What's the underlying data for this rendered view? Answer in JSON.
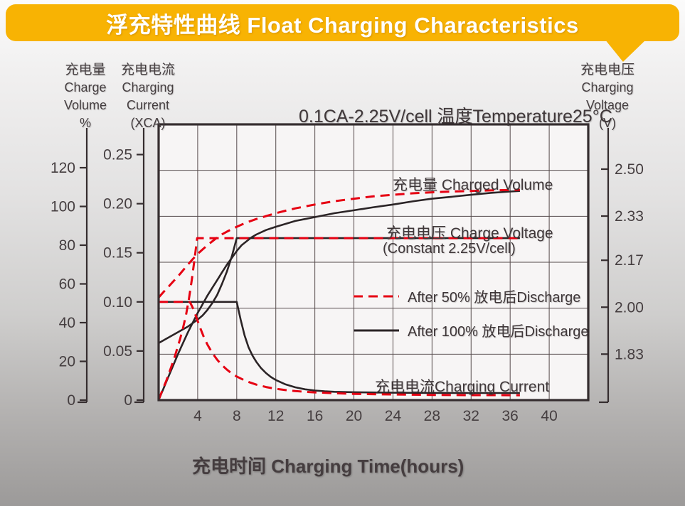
{
  "banner": {
    "title": "浮充特性曲线 Float Charging Characteristics",
    "color": "#F8B303"
  },
  "axes": {
    "volume": {
      "lines": [
        "充电量",
        "Charge",
        "Volume",
        "%"
      ]
    },
    "current": {
      "lines": [
        "充电电流",
        "Charging",
        "Current",
        "(XCA)"
      ]
    },
    "voltage": {
      "lines": [
        "充电电压",
        "Charging",
        "Voltage",
        "(V)"
      ]
    }
  },
  "annotations": {
    "charged_volume": "充电量 Charged Volume",
    "charge_voltage_line1": "充电电压 Charge Voltage",
    "charge_voltage_line2": "(Constant 2.25V/cell)",
    "charging_current": "充电电流Charging Current"
  },
  "legend": {
    "items": [
      {
        "label": "After 50% 放电后Discharge",
        "color": "#E60012",
        "dash": "13 8"
      },
      {
        "label": "After 100% 放电后Discharge",
        "color": "#2B2426",
        "dash": ""
      }
    ]
  },
  "x_axis_title": "充电时间 Charging Time(hours)",
  "chart_data": {
    "type": "line",
    "title": "浮充特性曲线 Float Charging Characteristics",
    "condition_note": "0.1CA-2.25V/cell  温度Temperature25°C",
    "grid": {
      "vertical_divisions": 11,
      "horizontal_divisions": 6,
      "grid_on": true
    },
    "x_axis": {
      "label": "充电时间 Charging Time(hours)",
      "range": [
        0,
        44
      ],
      "ticks": [
        "4",
        "8",
        "12",
        "16",
        "20",
        "24",
        "28",
        "32",
        "36",
        "40"
      ]
    },
    "y_axes": {
      "charge_volume": {
        "label": "充电量 Charge Volume %",
        "range": [
          0,
          120
        ],
        "ticks": [
          "0",
          "20",
          "40",
          "60",
          "80",
          "100",
          "120"
        ]
      },
      "charging_current": {
        "label": "充电电流 Charging Current (XCA)",
        "range": [
          0,
          0.25
        ],
        "ticks": [
          "0",
          "0.05",
          "0.10",
          "0.15",
          "0.20",
          "0.25"
        ]
      },
      "charging_voltage": {
        "label": "充电电压 Charging Voltage (V)",
        "range": [
          1.66,
          2.67
        ],
        "ticks": [
          "1.83",
          "2.00",
          "2.17",
          "2.33",
          "2.50"
        ]
      }
    },
    "legend_position": "middle-right",
    "series": [
      {
        "name": "Charged Volume — After 100% 放电后Discharge",
        "axis": "charge_volume",
        "color": "#2B2426",
        "dash": "",
        "width": 2.6,
        "points": [
          [
            0,
            0
          ],
          [
            0.5,
            6
          ],
          [
            1,
            12
          ],
          [
            1.5,
            18
          ],
          [
            2,
            24
          ],
          [
            2.5,
            29.5
          ],
          [
            3,
            35
          ],
          [
            3.5,
            40
          ],
          [
            4,
            45
          ],
          [
            4.5,
            49.5
          ],
          [
            5,
            54
          ],
          [
            5.5,
            58
          ],
          [
            6,
            62
          ],
          [
            6.5,
            66
          ],
          [
            7,
            70
          ],
          [
            7.5,
            73.5
          ],
          [
            8,
            77
          ],
          [
            8.5,
            80
          ],
          [
            9,
            82
          ],
          [
            9.5,
            84
          ],
          [
            10,
            85.5
          ],
          [
            11,
            87.8
          ],
          [
            12,
            89.5
          ],
          [
            13,
            91
          ],
          [
            14,
            92.5
          ],
          [
            15,
            93.5
          ],
          [
            16,
            94.5
          ],
          [
            18,
            96.5
          ],
          [
            20,
            98
          ],
          [
            22,
            99.6
          ],
          [
            24,
            101
          ],
          [
            26,
            102.6
          ],
          [
            28,
            104
          ],
          [
            30,
            105
          ],
          [
            32,
            106
          ],
          [
            34,
            107
          ],
          [
            36,
            107.7
          ],
          [
            37,
            108
          ]
        ]
      },
      {
        "name": "Charged Volume — After 50% 放电后Discharge",
        "axis": "charge_volume",
        "color": "#E60012",
        "dash": "13 8",
        "width": 3,
        "points": [
          [
            0,
            53
          ],
          [
            0.5,
            55.8
          ],
          [
            1,
            58.5
          ],
          [
            1.5,
            61.3
          ],
          [
            2,
            64
          ],
          [
            2.5,
            67
          ],
          [
            3,
            70
          ],
          [
            3.5,
            72.8
          ],
          [
            4,
            75.5
          ],
          [
            4.5,
            77.8
          ],
          [
            5,
            80
          ],
          [
            5.5,
            82
          ],
          [
            6,
            84
          ],
          [
            6.5,
            85.6
          ],
          [
            7,
            87
          ],
          [
            7.5,
            88.3
          ],
          [
            8,
            89.5
          ],
          [
            9,
            91.7
          ],
          [
            10,
            93.5
          ],
          [
            11,
            95
          ],
          [
            12,
            96.5
          ],
          [
            13,
            97.8
          ],
          [
            14,
            99
          ],
          [
            15,
            100
          ],
          [
            16,
            101
          ],
          [
            18,
            102.7
          ],
          [
            20,
            104
          ],
          [
            22,
            105.2
          ],
          [
            24,
            106
          ],
          [
            26,
            106.8
          ],
          [
            28,
            107.3
          ],
          [
            30,
            107.7
          ],
          [
            32,
            108
          ],
          [
            34,
            108.3
          ],
          [
            36,
            108.5
          ],
          [
            37,
            108.6
          ]
        ]
      },
      {
        "name": "Charge Voltage — After 100% 放电后Discharge (constant 2.25V/cell)",
        "axis": "charging_voltage",
        "color": "#2B2426",
        "dash": "",
        "width": 2.6,
        "points": [
          [
            0,
            1.87
          ],
          [
            1,
            1.89
          ],
          [
            2,
            1.91
          ],
          [
            3,
            1.93
          ],
          [
            4,
            1.955
          ],
          [
            4.5,
            1.97
          ],
          [
            5,
            1.99
          ],
          [
            5.5,
            2.015
          ],
          [
            6,
            2.045
          ],
          [
            6.5,
            2.085
          ],
          [
            7,
            2.13
          ],
          [
            7.5,
            2.185
          ],
          [
            8,
            2.25
          ],
          [
            37,
            2.25
          ]
        ]
      },
      {
        "name": "Charge Voltage — After 50% 放电后Discharge (constant 2.25V/cell)",
        "axis": "charging_voltage",
        "color": "#E60012",
        "dash": "13 8",
        "width": 3,
        "points": [
          [
            0,
            1.665
          ],
          [
            0.4,
            1.7
          ],
          [
            0.8,
            1.735
          ],
          [
            1.2,
            1.775
          ],
          [
            1.6,
            1.815
          ],
          [
            1.9,
            1.85
          ],
          [
            2.2,
            1.885
          ],
          [
            2.5,
            1.925
          ],
          [
            2.8,
            1.97
          ],
          [
            3.1,
            2.03
          ],
          [
            3.4,
            2.1
          ],
          [
            3.7,
            2.18
          ],
          [
            3.95,
            2.25
          ],
          [
            37,
            2.25
          ]
        ]
      },
      {
        "name": "Charging Current — After 100% 放电后Discharge",
        "axis": "charging_current",
        "color": "#2B2426",
        "dash": "",
        "width": 2.6,
        "points": [
          [
            0,
            0.1
          ],
          [
            8,
            0.1
          ],
          [
            8.4,
            0.082
          ],
          [
            8.8,
            0.066
          ],
          [
            9.2,
            0.054
          ],
          [
            9.6,
            0.0455
          ],
          [
            10,
            0.039
          ],
          [
            10.5,
            0.0325
          ],
          [
            11,
            0.0275
          ],
          [
            11.5,
            0.0235
          ],
          [
            12,
            0.0205
          ],
          [
            13,
            0.016
          ],
          [
            14,
            0.013
          ],
          [
            15,
            0.011
          ],
          [
            16,
            0.0098
          ],
          [
            17,
            0.009
          ],
          [
            18,
            0.0085
          ],
          [
            20,
            0.008
          ],
          [
            24,
            0.0075
          ],
          [
            28,
            0.0073
          ],
          [
            32,
            0.0072
          ],
          [
            37,
            0.0072
          ]
        ]
      },
      {
        "name": "Charging Current — After 50% 放电后Discharge",
        "axis": "charging_current",
        "color": "#E60012",
        "dash": "13 8",
        "width": 3,
        "points": [
          [
            0,
            0.1
          ],
          [
            3.2,
            0.1
          ],
          [
            3.5,
            0.094
          ],
          [
            3.8,
            0.086
          ],
          [
            4.2,
            0.075
          ],
          [
            4.6,
            0.065
          ],
          [
            5,
            0.0565
          ],
          [
            5.5,
            0.048
          ],
          [
            6,
            0.041
          ],
          [
            6.5,
            0.0355
          ],
          [
            7,
            0.031
          ],
          [
            7.5,
            0.027
          ],
          [
            8,
            0.024
          ],
          [
            9,
            0.0192
          ],
          [
            10,
            0.0158
          ],
          [
            11,
            0.0133
          ],
          [
            12,
            0.0115
          ],
          [
            13,
            0.0102
          ],
          [
            14,
            0.0092
          ],
          [
            15,
            0.0085
          ],
          [
            16,
            0.0079
          ],
          [
            18,
            0.007
          ],
          [
            20,
            0.0064
          ],
          [
            24,
            0.0057
          ],
          [
            28,
            0.0053
          ],
          [
            32,
            0.0051
          ],
          [
            37,
            0.005
          ]
        ]
      }
    ],
    "style": {
      "plot_background": "#F7F5F5",
      "grid_color": "#564B4C",
      "border_color": "#352D2F",
      "text_color": "#453E40",
      "red": "#E60012",
      "black": "#2B2426"
    }
  }
}
